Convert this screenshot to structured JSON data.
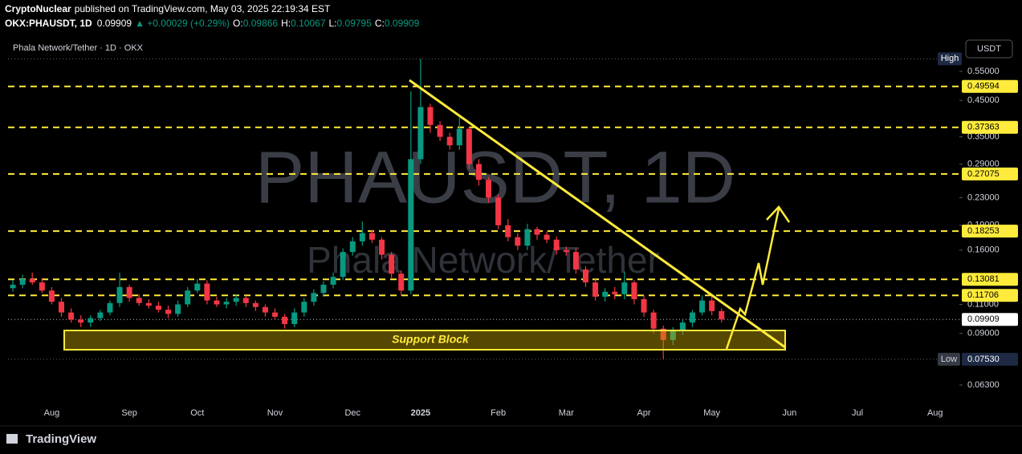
{
  "header": {
    "author": "CryptoNuclear",
    "published": "published on TradingView.com, May 03, 2025 22:19:34 EST",
    "symbol": "OKX:PHAUSDT, 1D",
    "price": "0.09909",
    "change": "▲ +0.00029 (+0.29%)",
    "ohlc": [
      {
        "key": "O:",
        "value": "0.09866"
      },
      {
        "key": "H:",
        "value": "0.10067"
      },
      {
        "key": "L:",
        "value": "0.09795"
      },
      {
        "key": "C:",
        "value": "0.09909"
      }
    ]
  },
  "footer": {
    "brand": "TradingView"
  },
  "chart_data": {
    "type": "candlestick",
    "legend": "Phala Network/Tether · 1D · OKX",
    "watermark": "PHAUSDT, 1D",
    "watermark_sub": "Phala Network/Tether",
    "currency": "USDT",
    "annotation": "Support Block",
    "up_color": "#089981",
    "down_color": "#f23645",
    "log_scale": true,
    "categories": [
      null,
      null,
      null,
      null,
      "Aug",
      null,
      null,
      null,
      null,
      null,
      null,
      null,
      "Sep",
      null,
      null,
      null,
      null,
      null,
      null,
      "Oct",
      null,
      null,
      null,
      null,
      null,
      null,
      null,
      "Nov",
      null,
      null,
      null,
      null,
      null,
      null,
      null,
      "Dec",
      null,
      null,
      null,
      null,
      null,
      null,
      "2025",
      null,
      null,
      null,
      null,
      null,
      null,
      null,
      "Feb",
      null,
      null,
      null,
      null,
      null,
      null,
      "Mar",
      null,
      null,
      null,
      null,
      null,
      null,
      null,
      "Apr",
      null,
      null,
      null,
      null,
      null,
      null,
      "May",
      null,
      null,
      null,
      null,
      null,
      null,
      null,
      "Jun",
      null,
      null,
      null,
      null,
      null,
      null,
      "Jul",
      null,
      null,
      null,
      null,
      null,
      null,
      null,
      "Aug",
      null,
      null
    ],
    "open": [
      0.123,
      0.126,
      0.131,
      0.128,
      0.121,
      0.112,
      0.104,
      0.099,
      0.097,
      0.1,
      0.104,
      0.111,
      0.124,
      0.115,
      0.111,
      0.109,
      0.106,
      0.103,
      0.11,
      0.121,
      0.127,
      0.113,
      0.11,
      0.112,
      0.115,
      0.111,
      0.108,
      0.104,
      0.101,
      0.096,
      0.104,
      0.112,
      0.119,
      0.126,
      0.133,
      0.158,
      0.17,
      0.18,
      0.172,
      0.155,
      0.136,
      0.121,
      0.3,
      0.43,
      0.38,
      0.35,
      0.33,
      0.37,
      0.29,
      0.26,
      0.23,
      0.19,
      0.175,
      0.165,
      0.185,
      0.178,
      0.172,
      0.16,
      0.158,
      0.14,
      0.128,
      0.116,
      0.12,
      0.118,
      0.128,
      0.114,
      0.104,
      0.093,
      0.086,
      0.092,
      0.097,
      0.104,
      0.113,
      0.105,
      null,
      null,
      null,
      null,
      null,
      null,
      null,
      null,
      null,
      null,
      null,
      null,
      null,
      null,
      null,
      null,
      null,
      null,
      null,
      null,
      null,
      null,
      null,
      null
    ],
    "high": [
      0.13,
      0.135,
      0.137,
      0.132,
      0.124,
      0.115,
      0.107,
      0.102,
      0.102,
      0.106,
      0.113,
      0.137,
      0.126,
      0.118,
      0.114,
      0.112,
      0.109,
      0.113,
      0.124,
      0.131,
      0.13,
      0.116,
      0.115,
      0.118,
      0.117,
      0.113,
      0.11,
      0.107,
      0.103,
      0.107,
      0.115,
      0.122,
      0.129,
      0.137,
      0.162,
      0.175,
      0.195,
      0.184,
      0.175,
      0.158,
      0.139,
      0.48,
      0.6,
      0.44,
      0.39,
      0.36,
      0.4,
      0.375,
      0.3,
      0.265,
      0.235,
      0.198,
      0.18,
      0.192,
      0.188,
      0.182,
      0.176,
      0.164,
      0.162,
      0.143,
      0.131,
      0.123,
      0.124,
      0.138,
      0.13,
      0.117,
      0.106,
      0.095,
      0.094,
      0.099,
      0.106,
      0.117,
      0.117,
      0.107,
      null,
      null,
      null,
      null,
      null,
      null,
      null,
      null,
      null,
      null,
      null,
      null,
      null,
      null,
      null,
      null,
      null,
      null,
      null,
      null,
      null,
      null,
      null,
      null
    ],
    "low": [
      0.12,
      0.123,
      0.126,
      0.119,
      0.11,
      0.101,
      0.097,
      0.094,
      0.094,
      0.098,
      0.102,
      0.108,
      0.112,
      0.109,
      0.107,
      0.104,
      0.1,
      0.101,
      0.108,
      0.119,
      0.11,
      0.108,
      0.107,
      0.109,
      0.108,
      0.105,
      0.101,
      0.099,
      0.093,
      0.094,
      0.101,
      0.109,
      0.116,
      0.123,
      0.13,
      0.154,
      0.165,
      0.168,
      0.15,
      0.132,
      0.117,
      0.118,
      0.29,
      0.36,
      0.34,
      0.32,
      0.32,
      0.28,
      0.25,
      0.222,
      0.185,
      0.17,
      0.16,
      0.16,
      0.172,
      0.168,
      0.155,
      0.154,
      0.136,
      0.124,
      0.113,
      0.112,
      0.114,
      0.114,
      0.11,
      0.101,
      0.09,
      0.0753,
      0.083,
      0.089,
      0.094,
      0.102,
      0.102,
      0.097,
      null,
      null,
      null,
      null,
      null,
      null,
      null,
      null,
      null,
      null,
      null,
      null,
      null,
      null,
      null,
      null,
      null,
      null,
      null,
      null,
      null,
      null,
      null,
      null
    ],
    "close": [
      0.126,
      0.131,
      0.128,
      0.121,
      0.112,
      0.104,
      0.099,
      0.097,
      0.1,
      0.104,
      0.111,
      0.124,
      0.115,
      0.111,
      0.109,
      0.106,
      0.103,
      0.11,
      0.121,
      0.127,
      0.113,
      0.11,
      0.112,
      0.115,
      0.111,
      0.108,
      0.104,
      0.101,
      0.096,
      0.104,
      0.112,
      0.119,
      0.126,
      0.133,
      0.158,
      0.17,
      0.18,
      0.172,
      0.155,
      0.136,
      0.121,
      0.3,
      0.43,
      0.38,
      0.35,
      0.33,
      0.37,
      0.29,
      0.26,
      0.23,
      0.19,
      0.175,
      0.165,
      0.185,
      0.178,
      0.172,
      0.16,
      0.158,
      0.14,
      0.128,
      0.116,
      0.12,
      0.118,
      0.128,
      0.114,
      0.104,
      0.093,
      0.086,
      0.092,
      0.097,
      0.104,
      0.113,
      0.105,
      0.0991,
      null,
      null,
      null,
      null,
      null,
      null,
      null,
      null,
      null,
      null,
      null,
      null,
      null,
      null,
      null,
      null,
      null,
      null,
      null,
      null,
      null,
      null,
      null,
      null
    ],
    "ylim": [
      0.0564,
      0.702
    ],
    "yticks": [
      {
        "value": 0.55,
        "label": "0.55000"
      },
      {
        "value": 0.45,
        "label": "0.45000"
      },
      {
        "value": 0.35,
        "label": "0.35000"
      },
      {
        "value": 0.29,
        "label": "0.29000"
      },
      {
        "value": 0.23,
        "label": "0.23000"
      },
      {
        "value": 0.19,
        "label": "0.19000"
      },
      {
        "value": 0.16,
        "label": "0.16000"
      },
      {
        "value": 0.11,
        "label": "0.11000"
      },
      {
        "value": 0.09,
        "label": "0.09000"
      },
      {
        "value": 0.063,
        "label": "0.06300"
      }
    ],
    "levels": [
      {
        "value": 0.49594,
        "label": "0.49594"
      },
      {
        "value": 0.37363,
        "label": "0.37363"
      },
      {
        "value": 0.27075,
        "label": "0.27075"
      },
      {
        "value": 0.18253,
        "label": "0.18253"
      },
      {
        "value": 0.13081,
        "label": "0.13081"
      },
      {
        "value": 0.11706,
        "label": "0.11706"
      }
    ],
    "level_color": "#ffeb3b",
    "last": {
      "value": 0.09909,
      "label": "0.09909"
    },
    "low_mark": {
      "tag": "Low",
      "value": 0.0753,
      "label": "0.07530"
    },
    "high_mark": {
      "tag": "High",
      "value": 0.6
    }
  }
}
